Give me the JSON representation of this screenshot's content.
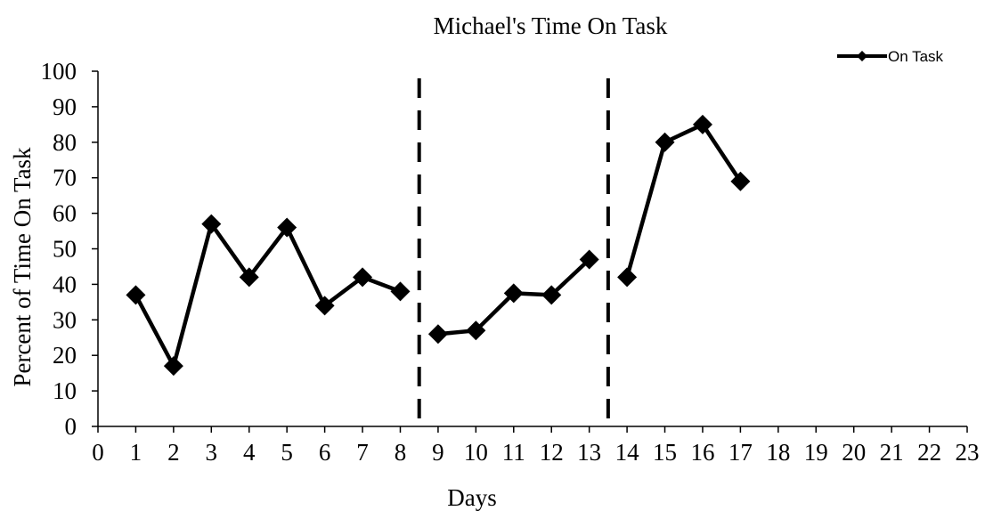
{
  "chart_data": {
    "type": "line",
    "title": "Michael's Time On Task",
    "xlabel": "Days",
    "ylabel": "Percent of Time On Task",
    "xlim": [
      0,
      23
    ],
    "ylim": [
      0,
      100
    ],
    "x_ticks": [
      0,
      1,
      2,
      3,
      4,
      5,
      6,
      7,
      8,
      9,
      10,
      11,
      12,
      13,
      14,
      15,
      16,
      17,
      18,
      19,
      20,
      21,
      22,
      23
    ],
    "y_ticks": [
      0,
      10,
      20,
      30,
      40,
      50,
      60,
      70,
      80,
      90,
      100
    ],
    "grid": false,
    "legend_position": "top-right",
    "series_color": "#000000",
    "series": [
      {
        "name": "On Task",
        "segments": [
          [
            {
              "x": 1,
              "y": 37
            },
            {
              "x": 2,
              "y": 17
            },
            {
              "x": 3,
              "y": 57
            },
            {
              "x": 4,
              "y": 42
            },
            {
              "x": 5,
              "y": 56
            },
            {
              "x": 6,
              "y": 34
            },
            {
              "x": 7,
              "y": 42
            },
            {
              "x": 8,
              "y": 38
            }
          ],
          [
            {
              "x": 9,
              "y": 26
            },
            {
              "x": 10,
              "y": 27
            },
            {
              "x": 11,
              "y": 37.5
            },
            {
              "x": 12,
              "y": 37
            },
            {
              "x": 13,
              "y": 47
            }
          ],
          [
            {
              "x": 14,
              "y": 42
            },
            {
              "x": 15,
              "y": 80
            },
            {
              "x": 16,
              "y": 85
            },
            {
              "x": 17,
              "y": 69
            }
          ]
        ]
      }
    ],
    "phase_lines_x": [
      8.5,
      13.5
    ]
  }
}
